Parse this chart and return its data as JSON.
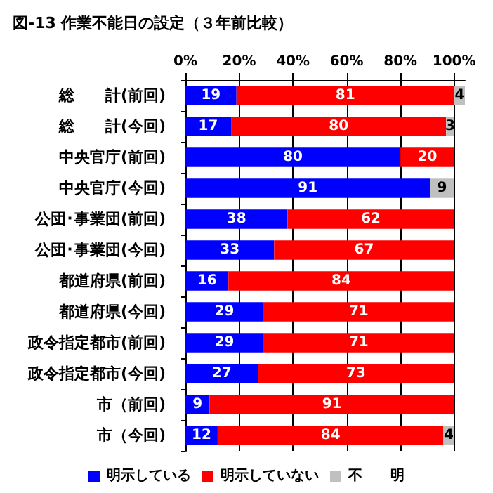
{
  "chart_data": {
    "type": "bar",
    "title": "図-13 作業不能日の設定（３年前比較）",
    "orientation": "horizontal",
    "stacked": true,
    "categories": [
      "総　　計(前回)",
      "総　　計(今回)",
      "中央官庁(前回)",
      "中央官庁(今回)",
      "公団･事業団(前回)",
      "公団･事業団(今回)",
      "都道府県(前回)",
      "都道府県(今回)",
      "政令指定都市(前回)",
      "政令指定都市(今回)",
      "市（前回)",
      "市（今回)"
    ],
    "series": [
      {
        "name": "明示している",
        "color": "#0000ff",
        "values": [
          19,
          17,
          80,
          91,
          38,
          33,
          16,
          29,
          29,
          27,
          9,
          12
        ],
        "value_labels": [
          "19",
          "17",
          "80",
          "91",
          "38",
          "33",
          "16",
          "29",
          "29",
          "27",
          "9",
          "12"
        ]
      },
      {
        "name": "明示していない",
        "color": "#ff0000",
        "values": [
          81,
          80,
          20,
          0,
          62,
          67,
          84,
          71,
          71,
          73,
          91,
          84
        ],
        "value_labels": [
          "81",
          "80",
          "20",
          null,
          "62",
          "67",
          "84",
          "71",
          "71",
          "73",
          "91",
          "84"
        ]
      },
      {
        "name": "不　　明",
        "color": "#c0c0c0",
        "values": [
          4,
          3,
          0,
          9,
          0,
          0,
          0,
          0,
          0,
          0,
          0,
          4
        ],
        "value_labels": [
          "4",
          "3",
          null,
          "9",
          null,
          null,
          null,
          null,
          null,
          null,
          null,
          "4"
        ]
      }
    ],
    "xlim": [
      0,
      104
    ],
    "xticks": [
      {
        "value": 0,
        "label": "0%"
      },
      {
        "value": 20,
        "label": "20%"
      },
      {
        "value": 40,
        "label": "40%"
      },
      {
        "value": 60,
        "label": "60%"
      },
      {
        "value": 80,
        "label": "80%"
      },
      {
        "value": 100,
        "label": "100%"
      }
    ],
    "grid": "x",
    "legend": "bottom"
  }
}
